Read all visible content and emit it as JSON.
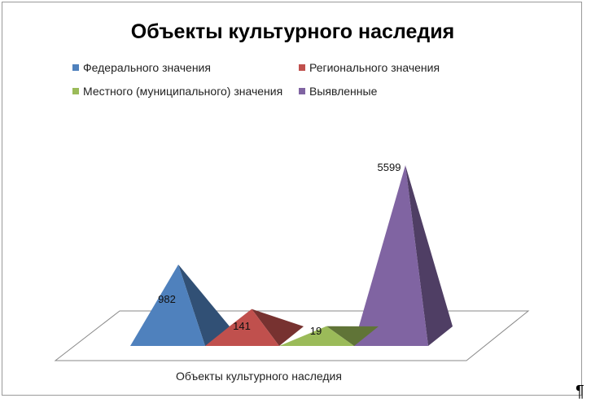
{
  "chart_data": {
    "type": "bar",
    "style": "3d-pyramid",
    "title": "Объекты культурного наследия",
    "xlabel": "Объекты культурного наследия",
    "ylabel": "",
    "categories": [
      "Объекты культурного наследия"
    ],
    "series": [
      {
        "name": "Федерального значения",
        "values": [
          982
        ],
        "color": "#4F81BD"
      },
      {
        "name": "Регионального значения",
        "values": [
          141
        ],
        "color": "#C0504D"
      },
      {
        "name": "Местного (муниципального) значения",
        "values": [
          19
        ],
        "color": "#9BBB59"
      },
      {
        "name": "Выявленные",
        "values": [
          5599
        ],
        "color": "#8064A2"
      }
    ],
    "data_labels": [
      "982",
      "141",
      "19",
      "5599"
    ],
    "ylim": [
      0,
      5599
    ],
    "grid": false,
    "legend_position": "top"
  },
  "pilcrow": "¶"
}
